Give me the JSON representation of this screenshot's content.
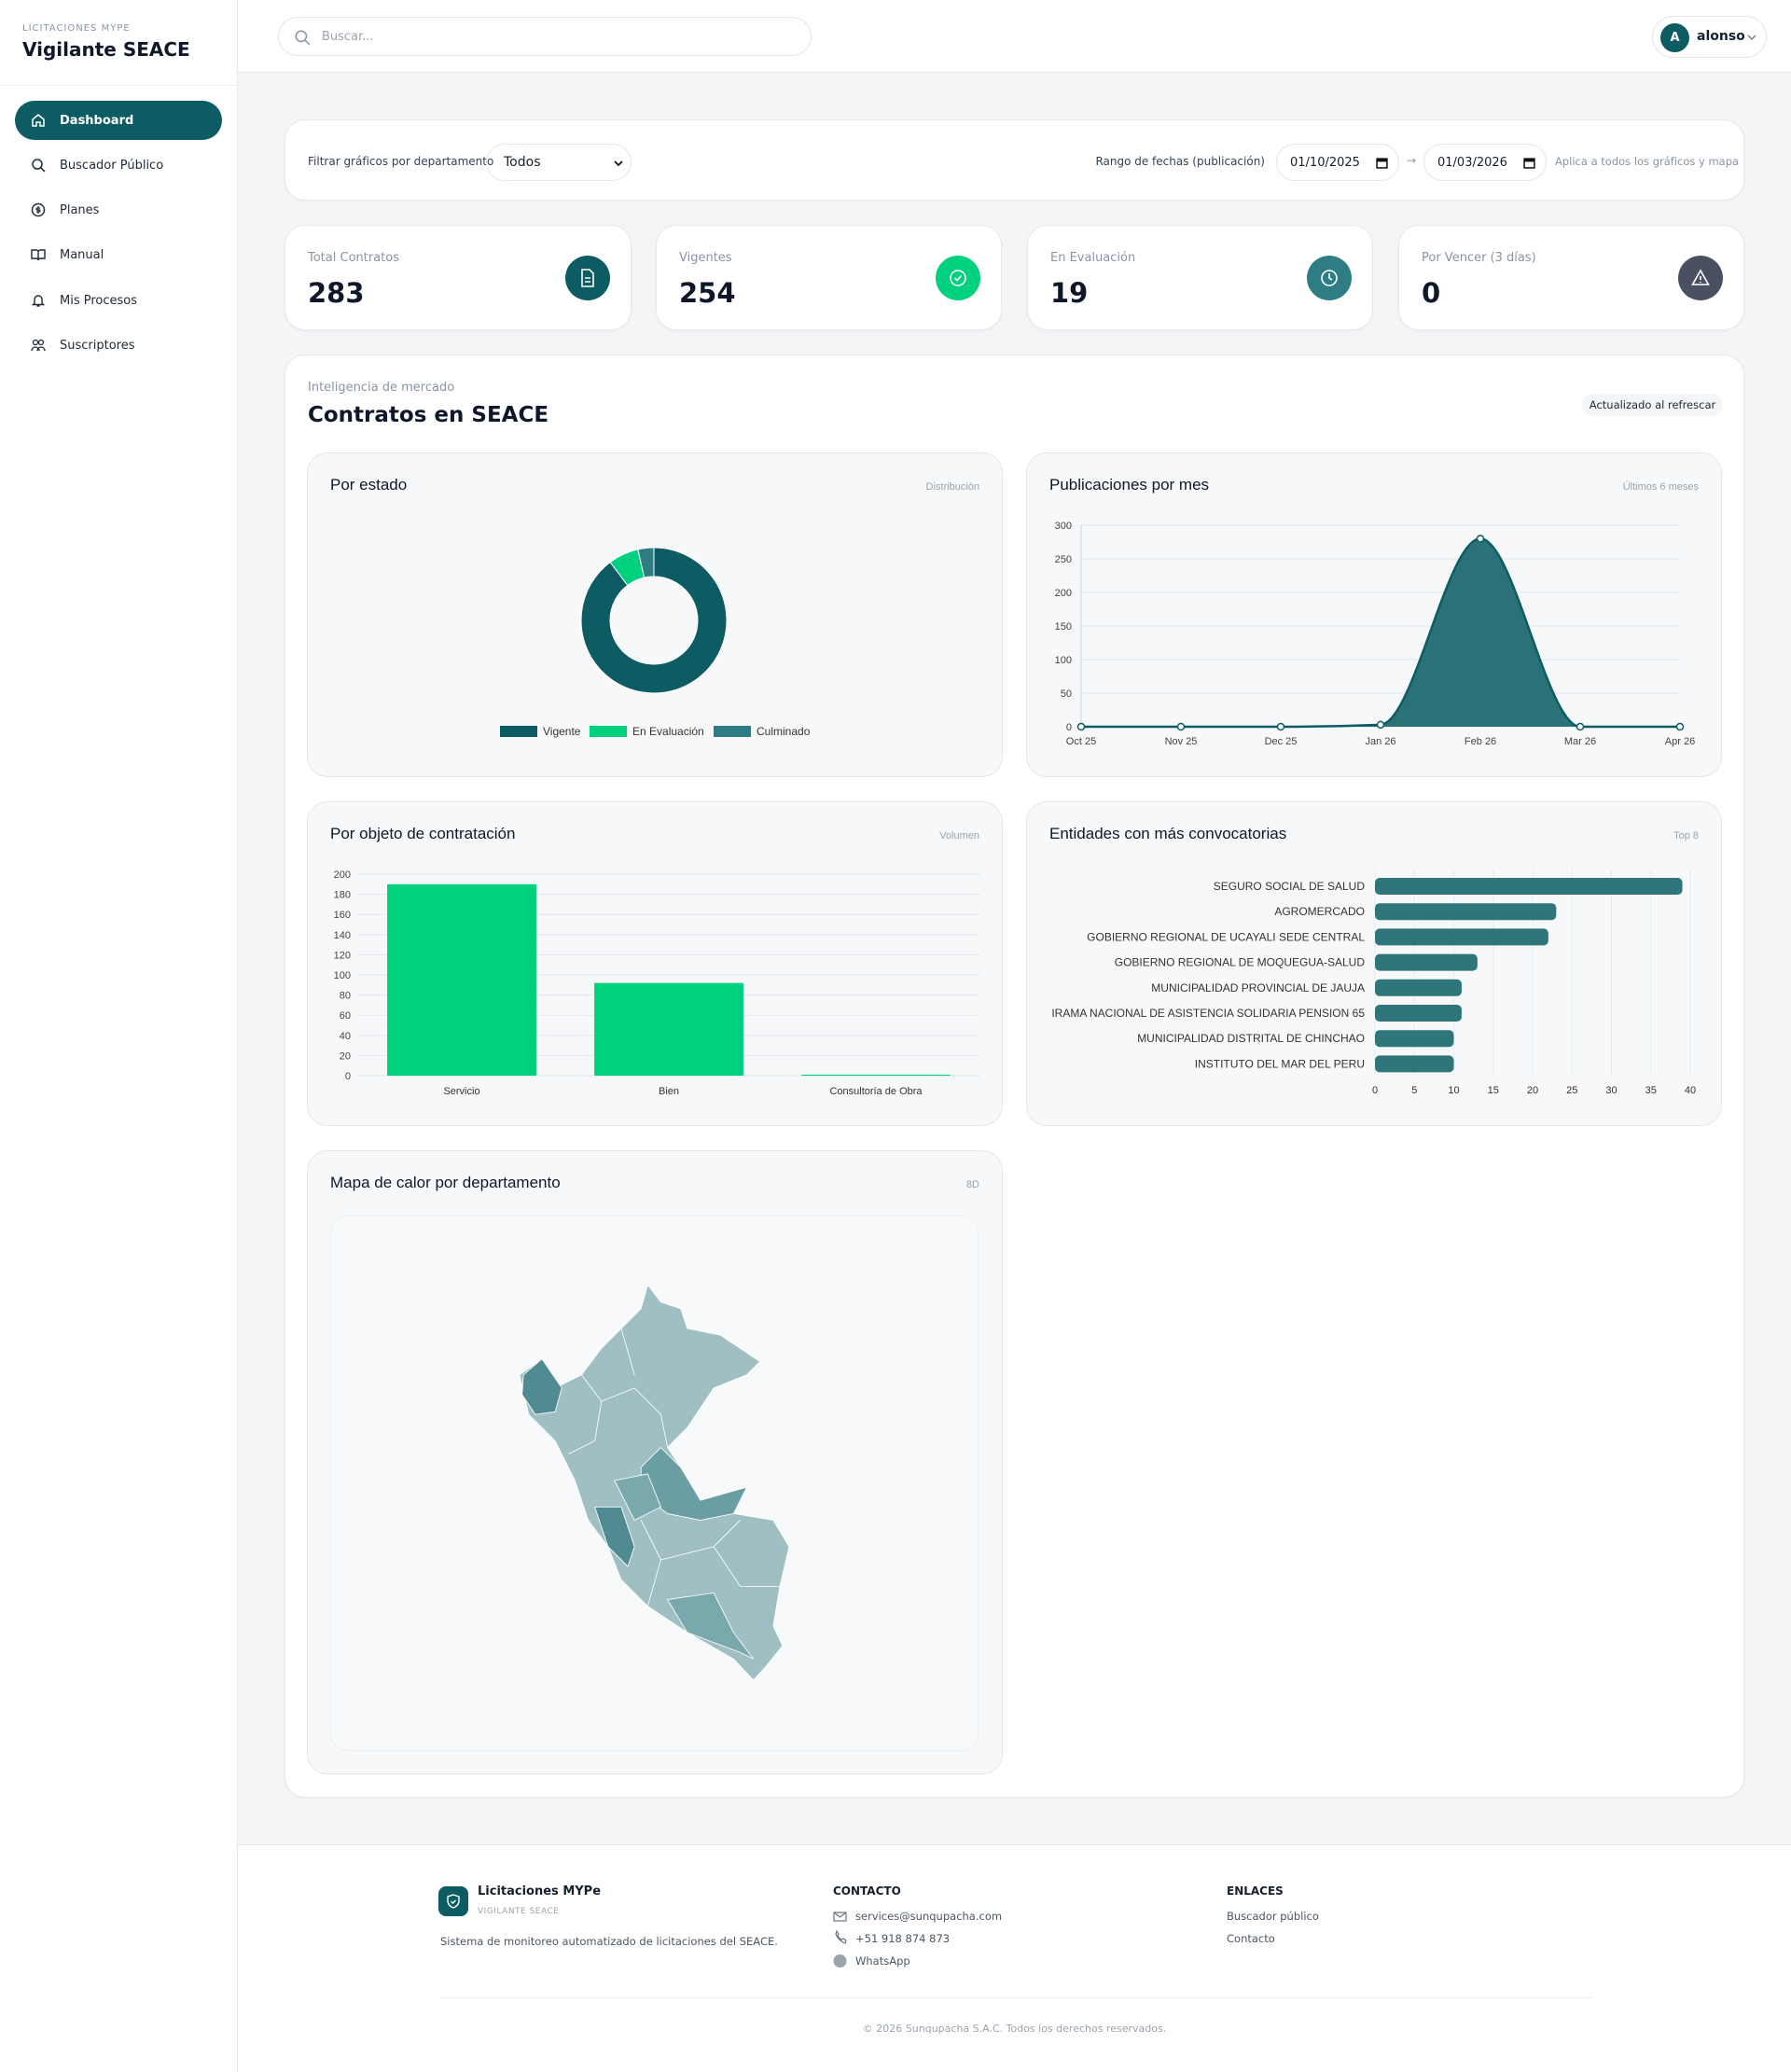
{
  "sidebar": {
    "brand_small": "LICITACIONES MYPE",
    "brand": "Vigilante SEACE",
    "nav": [
      "Dashboard",
      "Buscador Público",
      "Planes",
      "Manual",
      "Mis Procesos",
      "Suscriptores"
    ]
  },
  "header": {
    "search_placeholder": "Buscar...",
    "user_initial": "A",
    "user_name": "alonso"
  },
  "filters": {
    "department_label": "Filtrar gráficos por departamento",
    "department_value": "Todos",
    "range_label": "Rango de fechas (publicación)",
    "date_from": "01/10/2025",
    "arrow": "→",
    "date_to": "01/03/2026",
    "note": "Aplica a todos los gráficos y mapa"
  },
  "kpis": [
    {
      "label": "Total Contratos",
      "value": 283
    },
    {
      "label": "Vigentes",
      "value": 254
    },
    {
      "label": "En Evaluación",
      "value": 19
    },
    {
      "label": "Por Vencer (3 días)",
      "value": 0
    }
  ],
  "section": {
    "eyebrow": "Inteligencia de mercado",
    "title": "Contratos en SEACE",
    "badge": "Actualizado al refrescar"
  },
  "chart_data": [
    {
      "type": "pie",
      "title": "Por estado",
      "subtitle": "Distribución",
      "categories": [
        "Vigente",
        "En Evaluación",
        "Culminado"
      ],
      "values": [
        254,
        19,
        10
      ],
      "colors": [
        "#0d5c63",
        "#00d17f",
        "#2e7d84"
      ]
    },
    {
      "type": "line",
      "title": "Publicaciones por mes",
      "subtitle": "Últimos 6 meses",
      "categories": [
        "Oct 25",
        "Nov 25",
        "Dec 25",
        "Jan 26",
        "Feb 26",
        "Mar 26",
        "Apr 26"
      ],
      "series": [
        {
          "name": "Publicaciones",
          "color": "#0d5c63",
          "values": [
            0,
            0,
            0,
            3,
            280,
            0,
            0
          ]
        }
      ],
      "ylim": [
        0,
        300
      ],
      "yticks": [
        0,
        50,
        100,
        150,
        200,
        250,
        300
      ],
      "grid": true
    },
    {
      "type": "bar",
      "title": "Por objeto de contratación",
      "subtitle": "Volumen",
      "categories": [
        "Servicio",
        "Bien",
        "Consultoría de Obra"
      ],
      "values": [
        190,
        92,
        1
      ],
      "color": "#00d17f",
      "ylim": [
        0,
        200
      ],
      "yticks": [
        0,
        20,
        40,
        60,
        80,
        100,
        120,
        140,
        160,
        180,
        200
      ],
      "grid": true
    },
    {
      "type": "hbar",
      "title": "Entidades con más convocatorias",
      "subtitle": "Top 8",
      "categories": [
        "SEGURO SOCIAL DE SALUD",
        "AGROMERCADO",
        "GOBIERNO REGIONAL DE UCAYALI SEDE CENTRAL",
        "GOBIERNO REGIONAL DE MOQUEGUA-SALUD",
        "MUNICIPALIDAD PROVINCIAL DE JAUJA",
        "IRAMA NACIONAL DE ASISTENCIA SOLIDARIA PENSION 65",
        "MUNICIPALIDAD DISTRITAL DE CHINCHAO",
        "INSTITUTO DEL MAR DEL PERU"
      ],
      "values": [
        39,
        23,
        22,
        13,
        11,
        11,
        10,
        10
      ],
      "color": "#2e7679",
      "xlim": [
        0,
        40
      ],
      "xticks": [
        0,
        5,
        10,
        15,
        20,
        25,
        30,
        35,
        40
      ],
      "grid": true
    }
  ],
  "map": {
    "title": "Mapa de calor por departamento",
    "badge": "8D"
  },
  "footer": {
    "brand": "Licitaciones MYPe",
    "brand_small": "VIGILANTE SEACE",
    "description": "Sistema de monitoreo automatizado de licitaciones del SEACE.",
    "contact_title": "CONTACTO",
    "contacts": [
      "services@sunqupacha.com",
      "+51 918 874 873",
      "WhatsApp"
    ],
    "links_title": "ENLACES",
    "links": [
      "Buscador público",
      "Contacto"
    ],
    "copyright": "© 2026 Sunqupacha S.A.C. Todos los derechos reservados."
  }
}
